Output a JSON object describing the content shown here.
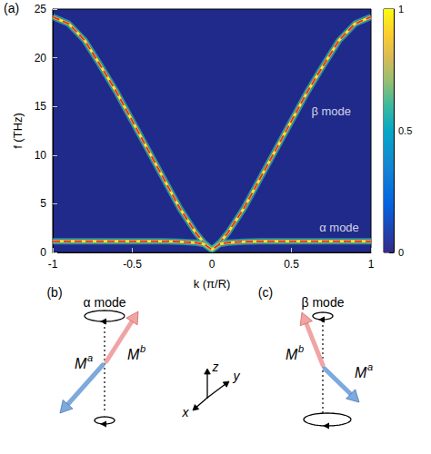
{
  "chart_data": {
    "type": "line",
    "title": "(a)",
    "x_label": "k (π/R)",
    "y_label": "f (THz)",
    "x": [
      -1,
      -0.9,
      -0.8,
      -0.7,
      -0.6,
      -0.5,
      -0.4,
      -0.3,
      -0.2,
      -0.1,
      -0.05,
      0,
      0.05,
      0.1,
      0.2,
      0.3,
      0.4,
      0.5,
      0.6,
      0.7,
      0.8,
      0.9,
      1
    ],
    "series": [
      {
        "name": "β mode",
        "color": "#e8312a",
        "line_style": "dashed",
        "values": [
          24.2,
          23.5,
          21.8,
          19.2,
          16.5,
          13.5,
          10.5,
          7.5,
          4.5,
          2.0,
          1.0,
          0.3,
          1.0,
          2.0,
          4.5,
          7.5,
          10.5,
          13.5,
          16.5,
          19.2,
          21.8,
          23.5,
          24.2
        ]
      },
      {
        "name": "α mode",
        "color": "#e8312a",
        "line_style": "dashed",
        "values": [
          1.15,
          1.15,
          1.15,
          1.15,
          1.15,
          1.15,
          1.15,
          1.15,
          1.1,
          1.0,
          0.85,
          0.3,
          0.85,
          1.0,
          1.1,
          1.15,
          1.15,
          1.15,
          1.15,
          1.15,
          1.15,
          1.15,
          1.15
        ]
      }
    ],
    "xlim": [
      -1,
      1
    ],
    "xticks": [
      -1,
      -0.5,
      0,
      0.5,
      1
    ],
    "ylim": [
      0,
      25
    ],
    "yticks": [
      0,
      5,
      10,
      15,
      20,
      25
    ],
    "annotations": [
      {
        "text": "β mode",
        "x": 0.75,
        "y": 14.5
      },
      {
        "text": "α mode",
        "x": 0.8,
        "y": 2.6
      }
    ],
    "colorbar": {
      "range": [
        0,
        1
      ],
      "ticks": [
        0,
        0.5,
        1
      ]
    },
    "grid": false
  },
  "diagrams": {
    "axes": [
      "z",
      "y",
      "x"
    ],
    "panels": [
      {
        "letter": "(b)",
        "title": "α mode",
        "moments": [
          {
            "base": "M",
            "sup": "b"
          },
          {
            "base": "M",
            "sup": "a"
          }
        ]
      },
      {
        "letter": "(c)",
        "title": "β mode",
        "moments": [
          {
            "base": "M",
            "sup": "b"
          },
          {
            "base": "M",
            "sup": "a"
          }
        ]
      }
    ]
  }
}
